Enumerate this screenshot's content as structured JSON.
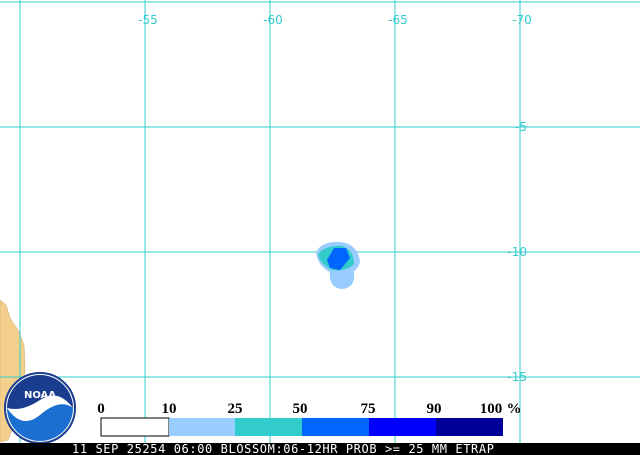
{
  "map": {
    "lon_labels": [
      "-55",
      "-60",
      "-65",
      "-70"
    ],
    "lat_labels": [
      "-5",
      "-10",
      "-15"
    ],
    "legend": {
      "labels": [
        "0",
        "10",
        "25",
        "50",
        "75",
        "90",
        "100"
      ],
      "unit": "%"
    },
    "logo": "NOAA",
    "caption": "11 SEP 25254 06:00 BLOSSOM:06-12HR PROB >= 25 MM ETRAP"
  }
}
